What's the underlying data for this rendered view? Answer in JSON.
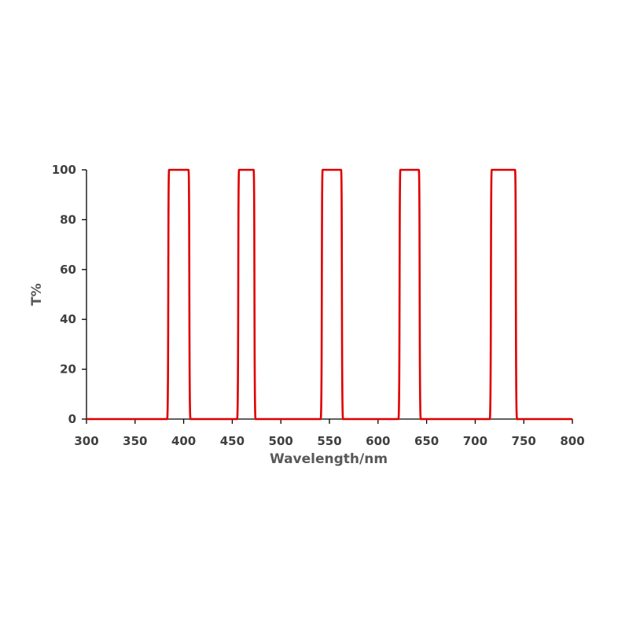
{
  "chart_data": {
    "type": "line",
    "xlabel": "Wavelength/nm",
    "ylabel": "T%",
    "xlim": [
      300,
      800
    ],
    "ylim": [
      0,
      100
    ],
    "x_ticks": [
      "300",
      "350",
      "400",
      "450",
      "500",
      "550",
      "600",
      "650",
      "700",
      "750",
      "800"
    ],
    "y_ticks": [
      "0",
      "20",
      "40",
      "60",
      "80",
      "100"
    ],
    "grid": false,
    "line_color": "#e00000",
    "axis_color": "#000000",
    "series": [
      {
        "passbands": [
          {
            "rise_start": 383,
            "flat_start": 385,
            "flat_end": 405,
            "fall_end": 407
          },
          {
            "rise_start": 455,
            "flat_start": 457,
            "flat_end": 472,
            "fall_end": 474
          },
          {
            "rise_start": 541,
            "flat_start": 543,
            "flat_end": 562,
            "fall_end": 564
          },
          {
            "rise_start": 621,
            "flat_start": 623,
            "flat_end": 642,
            "fall_end": 644
          },
          {
            "rise_start": 715,
            "flat_start": 717,
            "flat_end": 741,
            "fall_end": 743
          }
        ],
        "baseline": 0,
        "peak": 100
      }
    ]
  }
}
